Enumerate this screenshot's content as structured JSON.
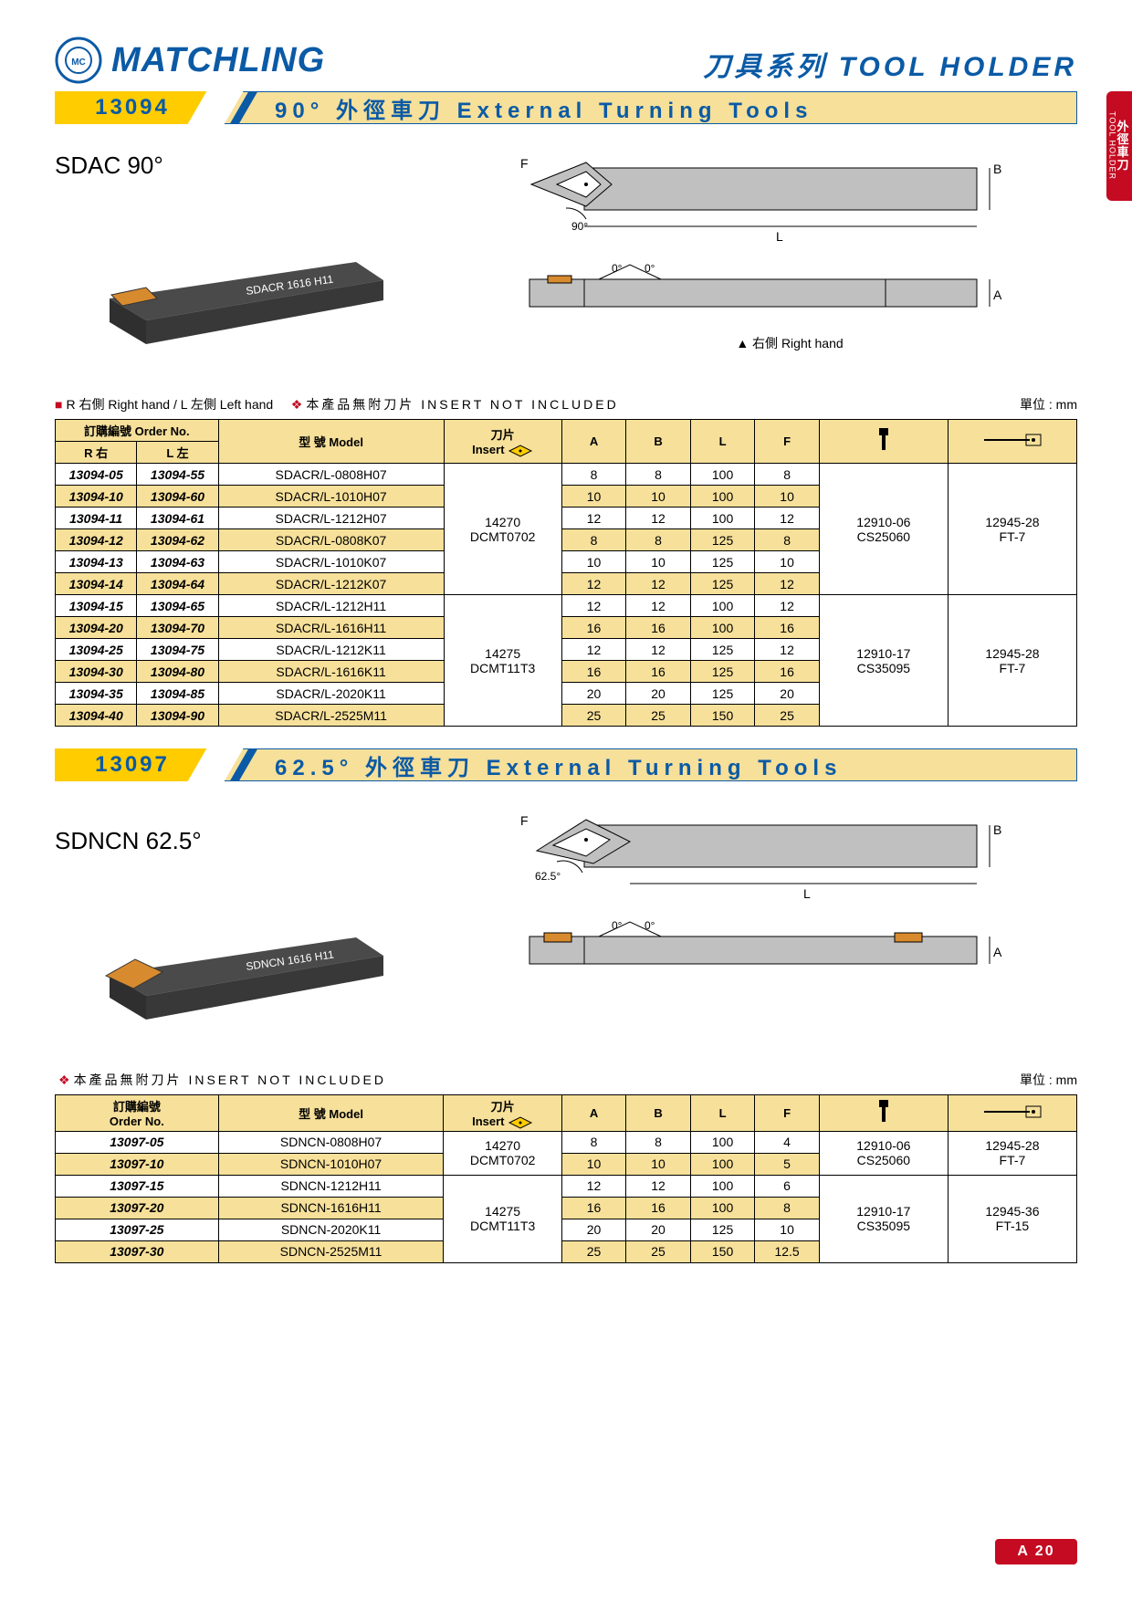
{
  "brand": {
    "name": "MATCHLING",
    "logo_glyph": "ⓂⒸ"
  },
  "page_title": "刀具系列 TOOL HOLDER",
  "side_tab": {
    "cn": "外徑車刀",
    "en": "TOOL HOLDER"
  },
  "footer_badge": "A 20",
  "colors": {
    "brand_blue": "#0b5aa5",
    "band_yellow": "#ffcc00",
    "band_light": "#f6e09a",
    "red": "#c40b22",
    "tool_body": "#4a4a4a",
    "insert_orange": "#d88a2e",
    "diagram_grey": "#c0c0c0"
  },
  "legend": {
    "hand_note": "R 右側 Right hand / L 左側 Left hand",
    "insert_note": "本產品無附刀片  INSERT NOT INCLUDED",
    "unit": "單位 : mm"
  },
  "diagram_labels": {
    "F": "F",
    "B": "B",
    "L": "L",
    "A": "A",
    "zero": "0°",
    "ninety": "90°",
    "sixtytwofive": "62.5°",
    "rhand": "▲ 右側 Right hand"
  },
  "table_headers": {
    "order": "訂購編號 Order No.",
    "order_simple": "訂購編號\nOrder No.",
    "r": "R 右",
    "l": "L 左",
    "model": "型 號  Model",
    "insert": "刀片\nInsert",
    "A": "A",
    "B": "B",
    "L": "L",
    "F": "F"
  },
  "sections": [
    {
      "code": "13094",
      "title": "90° 外徑車刀 External Turning Tools",
      "product_name": "SDAC 90°",
      "tool_label": "SDACR 1616 H11",
      "angle": "90°",
      "two_order_cols": true,
      "rows": [
        {
          "r": "13094-05",
          "l": "13094-55",
          "model": "SDACR/L-0808H07",
          "insert": "14270\nDCMT0702",
          "A": "8",
          "B": "8",
          "L": "100",
          "F": "8",
          "col1": "12910-06\nCS25060",
          "col2": "12945-28\nFT-7",
          "insert_span": 6,
          "col_span": 6
        },
        {
          "r": "13094-10",
          "l": "13094-60",
          "model": "SDACR/L-1010H07",
          "A": "10",
          "B": "10",
          "L": "100",
          "F": "10",
          "stripe": true
        },
        {
          "r": "13094-11",
          "l": "13094-61",
          "model": "SDACR/L-1212H07",
          "A": "12",
          "B": "12",
          "L": "100",
          "F": "12"
        },
        {
          "r": "13094-12",
          "l": "13094-62",
          "model": "SDACR/L-0808K07",
          "A": "8",
          "B": "8",
          "L": "125",
          "F": "8",
          "stripe": true
        },
        {
          "r": "13094-13",
          "l": "13094-63",
          "model": "SDACR/L-1010K07",
          "A": "10",
          "B": "10",
          "L": "125",
          "F": "10"
        },
        {
          "r": "13094-14",
          "l": "13094-64",
          "model": "SDACR/L-1212K07",
          "A": "12",
          "B": "12",
          "L": "125",
          "F": "12",
          "stripe": true
        },
        {
          "r": "13094-15",
          "l": "13094-65",
          "model": "SDACR/L-1212H11",
          "insert": "14275\nDCMT11T3",
          "A": "12",
          "B": "12",
          "L": "100",
          "F": "12",
          "col1": "12910-17\nCS35095",
          "col2": "12945-28\nFT-7",
          "insert_span": 6,
          "col_span": 6
        },
        {
          "r": "13094-20",
          "l": "13094-70",
          "model": "SDACR/L-1616H11",
          "A": "16",
          "B": "16",
          "L": "100",
          "F": "16",
          "stripe": true
        },
        {
          "r": "13094-25",
          "l": "13094-75",
          "model": "SDACR/L-1212K11",
          "A": "12",
          "B": "12",
          "L": "125",
          "F": "12"
        },
        {
          "r": "13094-30",
          "l": "13094-80",
          "model": "SDACR/L-1616K11",
          "A": "16",
          "B": "16",
          "L": "125",
          "F": "16",
          "stripe": true
        },
        {
          "r": "13094-35",
          "l": "13094-85",
          "model": "SDACR/L-2020K11",
          "A": "20",
          "B": "20",
          "L": "125",
          "F": "20"
        },
        {
          "r": "13094-40",
          "l": "13094-90",
          "model": "SDACR/L-2525M11",
          "A": "25",
          "B": "25",
          "L": "150",
          "F": "25",
          "stripe": true
        }
      ]
    },
    {
      "code": "13097",
      "title": "62.5° 外徑車刀 External Turning Tools",
      "product_name": "SDNCN 62.5°",
      "tool_label": "SDNCN 1616 H11",
      "angle": "62.5°",
      "two_order_cols": false,
      "rows": [
        {
          "r": "13097-05",
          "model": "SDNCN-0808H07",
          "insert": "14270\nDCMT0702",
          "A": "8",
          "B": "8",
          "L": "100",
          "F": "4",
          "col1": "12910-06\nCS25060",
          "col2": "12945-28\nFT-7",
          "insert_span": 2,
          "col_span": 2
        },
        {
          "r": "13097-10",
          "model": "SDNCN-1010H07",
          "A": "10",
          "B": "10",
          "L": "100",
          "F": "5",
          "stripe": true
        },
        {
          "r": "13097-15",
          "model": "SDNCN-1212H11",
          "insert": "14275\nDCMT11T3",
          "A": "12",
          "B": "12",
          "L": "100",
          "F": "6",
          "col1": "12910-17\nCS35095",
          "col2": "12945-36\nFT-15",
          "insert_span": 4,
          "col_span": 4
        },
        {
          "r": "13097-20",
          "model": "SDNCN-1616H11",
          "A": "16",
          "B": "16",
          "L": "100",
          "F": "8",
          "stripe": true
        },
        {
          "r": "13097-25",
          "model": "SDNCN-2020K11",
          "A": "20",
          "B": "20",
          "L": "125",
          "F": "10"
        },
        {
          "r": "13097-30",
          "model": "SDNCN-2525M11",
          "A": "25",
          "B": "25",
          "L": "150",
          "F": "12.5",
          "stripe": true
        }
      ]
    }
  ]
}
